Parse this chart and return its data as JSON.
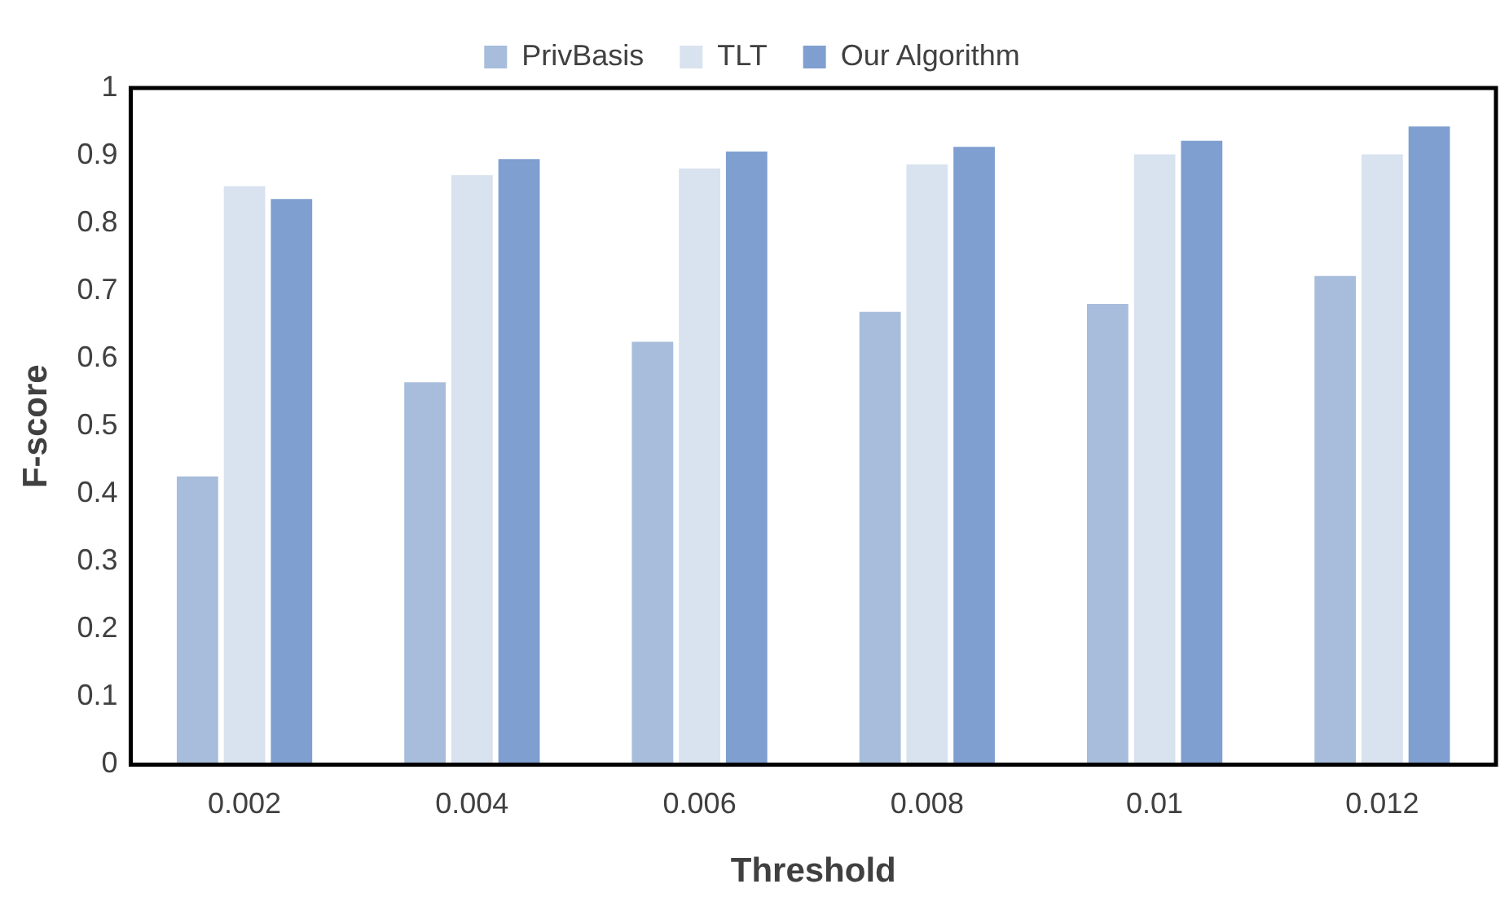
{
  "chart_data": {
    "type": "bar",
    "xlabel": "Threshold",
    "ylabel": "F-score",
    "categories": [
      "0.002",
      "0.004",
      "0.006",
      "0.008",
      "0.01",
      "0.012"
    ],
    "series": [
      {
        "name": "PrivBasis",
        "color": "#a7bddb",
        "values": [
          0.426,
          0.565,
          0.625,
          0.669,
          0.681,
          0.722
        ]
      },
      {
        "name": "TLT",
        "color": "#d9e2ef",
        "values": [
          0.855,
          0.871,
          0.881,
          0.887,
          0.902,
          0.902
        ]
      },
      {
        "name": "Our Algorithm",
        "color": "#7f9fd0",
        "values": [
          0.836,
          0.895,
          0.906,
          0.913,
          0.922,
          0.943
        ]
      }
    ],
    "ylim": [
      0,
      1
    ],
    "yticks": [
      0,
      0.1,
      0.2,
      0.3,
      0.4,
      0.5,
      0.6,
      0.7,
      0.8,
      0.9,
      1
    ],
    "grid": false,
    "legend": "top"
  }
}
